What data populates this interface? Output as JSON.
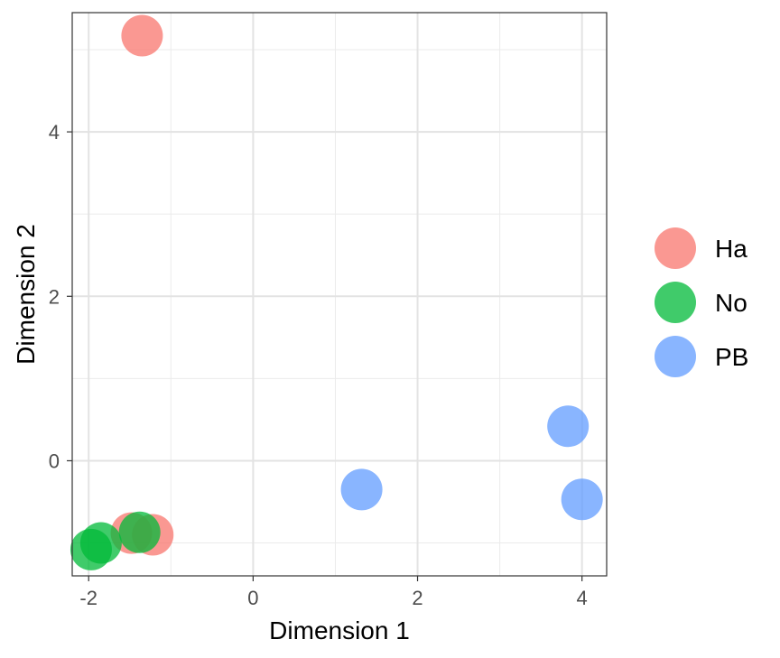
{
  "chart_data": {
    "type": "scatter",
    "title": "",
    "xlabel": "Dimension 1",
    "ylabel": "Dimension 2",
    "xlim": [
      -2.2,
      4.3
    ],
    "ylim": [
      -1.4,
      5.45
    ],
    "x_ticks": [
      -2,
      0,
      2,
      4
    ],
    "x_tick_labels": [
      "-2",
      "0",
      "2",
      "4"
    ],
    "y_ticks": [
      0,
      2,
      4
    ],
    "y_tick_labels": [
      "0",
      "2",
      "4"
    ],
    "x_minor_ticks": [
      -1,
      1,
      3
    ],
    "y_minor_ticks": [
      -1,
      1,
      3,
      5
    ],
    "grid": true,
    "legend_position": "right",
    "series": [
      {
        "name": "Ha",
        "color": "#F8766D",
        "points": [
          [
            -1.35,
            5.17
          ],
          [
            -1.48,
            -0.88
          ],
          [
            -1.22,
            -0.9
          ]
        ]
      },
      {
        "name": "No",
        "color": "#00BA38",
        "points": [
          [
            -1.38,
            -0.87
          ],
          [
            -1.85,
            -1.0
          ],
          [
            -1.97,
            -1.08
          ]
        ]
      },
      {
        "name": "PB",
        "color": "#619CFF",
        "points": [
          [
            1.32,
            -0.35
          ],
          [
            3.83,
            0.42
          ],
          [
            4.0,
            -0.47
          ]
        ]
      }
    ]
  }
}
